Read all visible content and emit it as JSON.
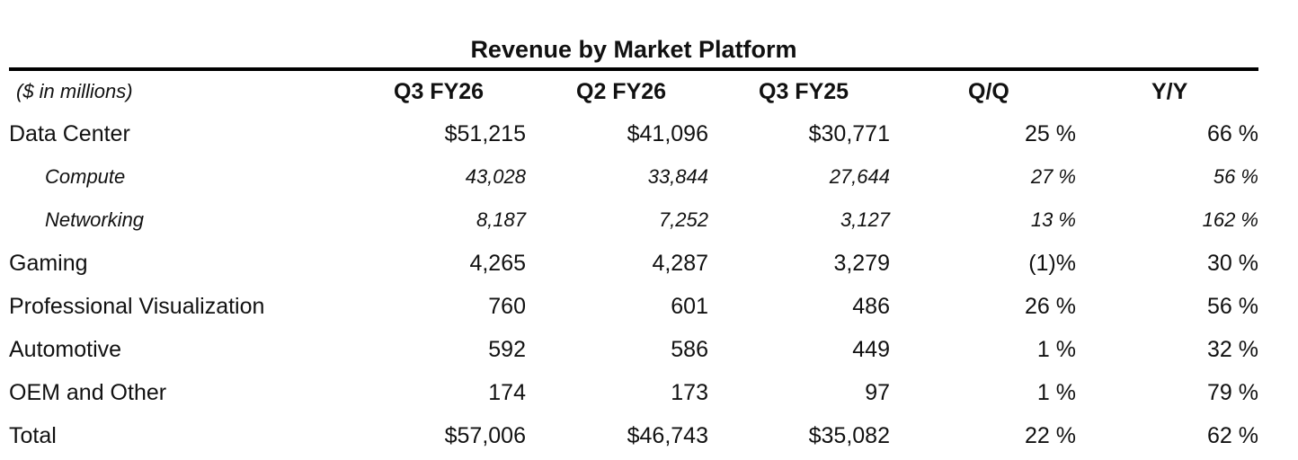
{
  "title": "Revenue by Market Platform",
  "header": {
    "label": "($ in millions)",
    "columns": [
      "Q3 FY26",
      "Q2 FY26",
      "Q3 FY25",
      "Q/Q",
      "Y/Y"
    ]
  },
  "rows": [
    {
      "label": "Data Center",
      "values": [
        "$51,215",
        "$41,096",
        "$30,771",
        "25 %",
        "66 %"
      ],
      "sub": false
    },
    {
      "label": "Compute",
      "values": [
        "43,028",
        "33,844",
        "27,644",
        "27 %",
        "56 %"
      ],
      "sub": true
    },
    {
      "label": "Networking",
      "values": [
        "8,187",
        "7,252",
        "3,127",
        "13 %",
        "162 %"
      ],
      "sub": true
    },
    {
      "label": "Gaming",
      "values": [
        "4,265",
        "4,287",
        "3,279",
        "(1)%",
        "30 %"
      ],
      "sub": false
    },
    {
      "label": "Professional Visualization",
      "values": [
        "760",
        "601",
        "486",
        "26 %",
        "56 %"
      ],
      "sub": false
    },
    {
      "label": "Automotive",
      "values": [
        "592",
        "586",
        "449",
        "1 %",
        "32 %"
      ],
      "sub": false
    },
    {
      "label": "OEM and Other",
      "values": [
        "174",
        "173",
        "97",
        "1 %",
        "79 %"
      ],
      "sub": false
    },
    {
      "label": "Total",
      "values": [
        "$57,006",
        "$46,743",
        "$35,082",
        "22 %",
        "62 %"
      ],
      "sub": false
    }
  ]
}
